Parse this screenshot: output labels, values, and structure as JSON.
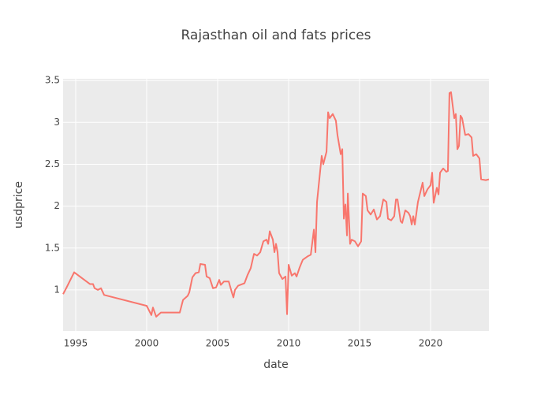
{
  "chart_data": {
    "type": "line",
    "title": "Rajasthan oil and fats prices",
    "x_label": "date",
    "y_label": "usdprice",
    "x": [
      1994.11,
      1994.33,
      1994.89,
      1996.0,
      1996.22,
      1996.33,
      1996.56,
      1996.78,
      1997.0,
      2000.0,
      2000.33,
      2000.44,
      2000.67,
      2001.0,
      2002.33,
      2002.56,
      2002.89,
      2003.0,
      2003.22,
      2003.44,
      2003.67,
      2003.78,
      2004.11,
      2004.22,
      2004.44,
      2004.67,
      2004.89,
      2005.11,
      2005.22,
      2005.44,
      2005.78,
      2006.0,
      2006.11,
      2006.22,
      2006.44,
      2006.89,
      2007.11,
      2007.33,
      2007.56,
      2007.78,
      2008.0,
      2008.22,
      2008.44,
      2008.56,
      2008.67,
      2008.89,
      2009.0,
      2009.11,
      2009.22,
      2009.33,
      2009.56,
      2009.78,
      2009.89,
      2010.0,
      2010.22,
      2010.44,
      2010.56,
      2010.78,
      2011.0,
      2011.33,
      2011.56,
      2011.78,
      2011.89,
      2012.0,
      2012.33,
      2012.44,
      2012.67,
      2012.78,
      2012.89,
      2013.11,
      2013.33,
      2013.44,
      2013.67,
      2013.78,
      2013.89,
      2014.0,
      2014.11,
      2014.17,
      2014.33,
      2014.44,
      2014.67,
      2014.89,
      2015.11,
      2015.22,
      2015.44,
      2015.56,
      2015.78,
      2016.0,
      2016.22,
      2016.44,
      2016.67,
      2016.89,
      2017.0,
      2017.22,
      2017.44,
      2017.56,
      2017.67,
      2017.89,
      2018.0,
      2018.22,
      2018.44,
      2018.56,
      2018.67,
      2018.78,
      2018.89,
      2019.11,
      2019.44,
      2019.56,
      2019.78,
      2020.0,
      2020.11,
      2020.22,
      2020.44,
      2020.56,
      2020.67,
      2020.89,
      2021.11,
      2021.22,
      2021.33,
      2021.44,
      2021.67,
      2021.78,
      2021.89,
      2022.0,
      2022.11,
      2022.22,
      2022.44,
      2022.67,
      2022.89,
      2023.0,
      2023.22,
      2023.44,
      2023.56,
      2023.89,
      2024.11
    ],
    "values": [
      0.95,
      1.02,
      1.21,
      1.07,
      1.07,
      1.02,
      1.0,
      1.02,
      0.94,
      0.81,
      0.7,
      0.79,
      0.68,
      0.73,
      0.73,
      0.88,
      0.93,
      0.97,
      1.15,
      1.2,
      1.21,
      1.31,
      1.3,
      1.16,
      1.14,
      1.02,
      1.03,
      1.12,
      1.06,
      1.1,
      1.1,
      0.97,
      0.91,
      1.0,
      1.05,
      1.08,
      1.18,
      1.26,
      1.43,
      1.41,
      1.45,
      1.58,
      1.6,
      1.55,
      1.7,
      1.6,
      1.45,
      1.55,
      1.45,
      1.2,
      1.13,
      1.16,
      0.71,
      1.3,
      1.17,
      1.2,
      1.16,
      1.27,
      1.36,
      1.4,
      1.42,
      1.72,
      1.45,
      2.05,
      2.6,
      2.5,
      2.65,
      3.12,
      3.05,
      3.1,
      3.02,
      2.85,
      2.62,
      2.68,
      1.85,
      2.02,
      1.65,
      2.15,
      1.55,
      1.6,
      1.58,
      1.52,
      1.58,
      2.15,
      2.12,
      1.95,
      1.9,
      1.96,
      1.84,
      1.88,
      2.08,
      2.05,
      1.85,
      1.83,
      1.88,
      2.08,
      2.08,
      1.82,
      1.8,
      1.95,
      1.92,
      1.88,
      1.78,
      1.88,
      1.78,
      2.05,
      2.28,
      2.12,
      2.2,
      2.25,
      2.4,
      2.04,
      2.22,
      2.14,
      2.4,
      2.45,
      2.41,
      2.42,
      3.35,
      3.36,
      3.05,
      3.1,
      2.68,
      2.72,
      3.08,
      3.05,
      2.85,
      2.86,
      2.82,
      2.6,
      2.62,
      2.57,
      2.32,
      2.31,
      2.32
    ],
    "color": "#f8766d",
    "xlim": [
      1994.11,
      2024.11
    ],
    "xticks": [
      1995,
      2000,
      2005,
      2010,
      2015,
      2020
    ],
    "ylim": [
      0.51,
      3.52
    ],
    "yticks": [
      1,
      1.5,
      2,
      2.5,
      3,
      3.5
    ],
    "grid": true
  }
}
